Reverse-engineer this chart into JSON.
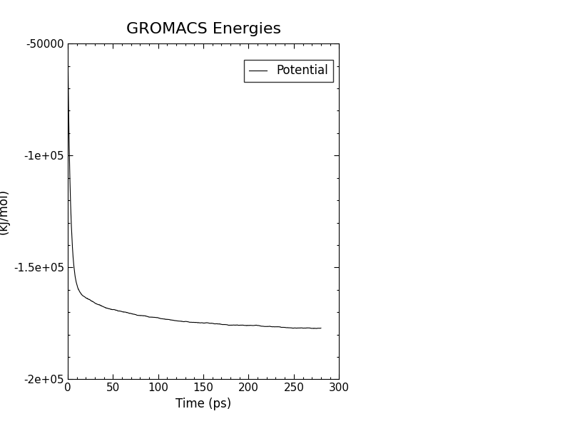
{
  "title": "GROMACS Energies",
  "xlabel": "Time (ps)",
  "ylabel": "(kJ/mol)",
  "legend_label": "Potential",
  "xlim": [
    0,
    280
  ],
  "ylim": [
    -200000,
    -50000
  ],
  "xticks": [
    0,
    50,
    100,
    150,
    200,
    250,
    300
  ],
  "yticks": [
    -200000,
    -150000,
    -100000,
    -50000
  ],
  "line_color": "#000000",
  "background_color": "#ffffff",
  "title_fontsize": 16,
  "label_fontsize": 12,
  "tick_fontsize": 11,
  "E0": -52000,
  "E_final": -177000,
  "tau1": 3,
  "tau2": 60,
  "t_max": 280,
  "n_points": 5000
}
